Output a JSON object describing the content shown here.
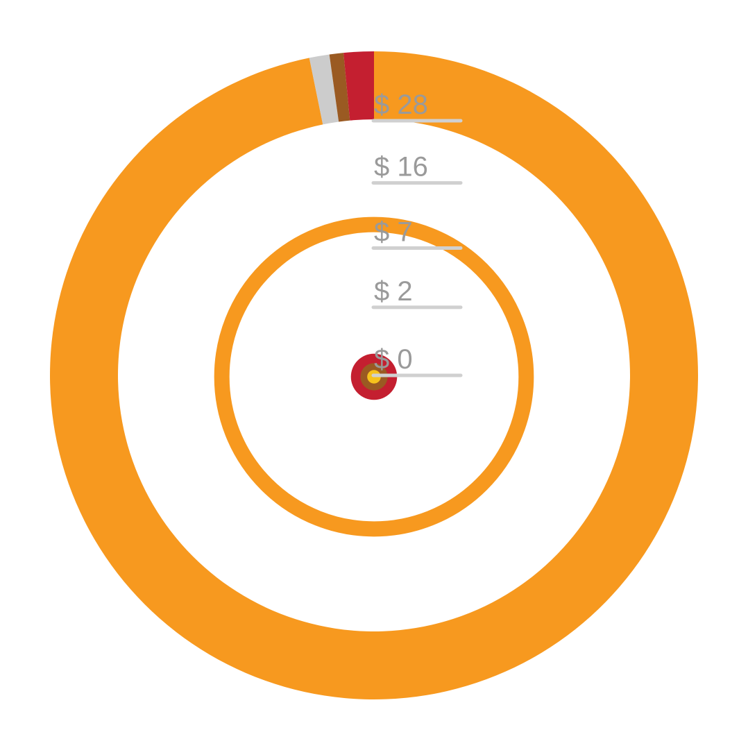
{
  "chart_data": {
    "type": "radial",
    "segments": [
      {
        "color": "#f7991f",
        "value": 96.8
      },
      {
        "color": "#cccccc",
        "value": 1.0
      },
      {
        "color": "#9a5a22",
        "value": 0.7
      },
      {
        "color": "#c41f30",
        "value": 1.5
      }
    ],
    "rings": [
      {
        "color": "#f7991f",
        "value": 10
      },
      {
        "color": "#c41f30",
        "value": 0.23
      },
      {
        "color": "#9a5a22",
        "value": 0.08
      },
      {
        "color": "#f6c21c",
        "value": 0.02
      }
    ],
    "rscale": "sqrt",
    "rlim": [
      0,
      28
    ],
    "rticks": [
      {
        "value": 28,
        "label": "$ 28"
      },
      {
        "value": 16,
        "label": "$ 16"
      },
      {
        "value": 7,
        "label": "$ 7"
      },
      {
        "value": 2,
        "label": "$ 2"
      },
      {
        "value": 0,
        "label": "$ 0"
      }
    ]
  }
}
